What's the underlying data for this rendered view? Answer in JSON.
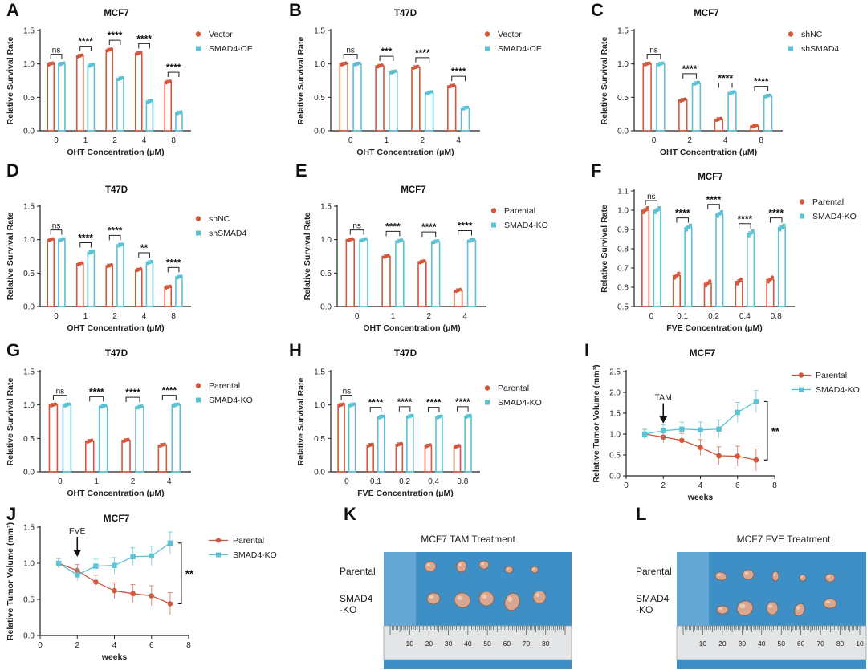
{
  "figure": {
    "colors": {
      "red": "#d2573d",
      "blue": "#5bc2d4",
      "axis": "#222222",
      "photo_bg": "#3e8fc6"
    },
    "photos": [
      {
        "panel": "K",
        "title": "MCF7 TAM Treatment",
        "row1": "Parental",
        "row2a": "SMAD4",
        "row2b": "-KO",
        "ruler": [
          "10",
          "20",
          "30",
          "40",
          "50",
          "60",
          "70",
          "80"
        ]
      },
      {
        "panel": "L",
        "title": "MCF7 FVE Treatment",
        "row1": "Parental",
        "row2a": "SMAD4",
        "row2b": "-KO",
        "ruler": [
          "10",
          "20",
          "30",
          "40",
          "50",
          "60",
          "70",
          "80",
          "10"
        ]
      }
    ]
  },
  "chart_data": [
    {
      "id": "A",
      "type": "bar",
      "panel": "A",
      "title": "MCF7",
      "xlabel": "OHT Concentration (μM)",
      "ylabel": "Relative Survival Rate",
      "categories": [
        "0",
        "1",
        "2",
        "4",
        "8"
      ],
      "yticks": [
        "0.0",
        "0.5",
        "1.0",
        "1.5"
      ],
      "ylim": [
        0,
        1.5
      ],
      "series": [
        {
          "name": "Vector",
          "values": [
            1.0,
            1.12,
            1.21,
            1.16,
            0.73
          ]
        },
        {
          "name": "SMAD4-OE",
          "values": [
            1.0,
            0.98,
            0.78,
            0.44,
            0.27
          ]
        }
      ],
      "sig": [
        "ns",
        "****",
        "****",
        "****",
        "****"
      ]
    },
    {
      "id": "B",
      "type": "bar",
      "panel": "B",
      "title": "T47D",
      "xlabel": "OHT Concentration (μM)",
      "ylabel": "Relative Survival Rate",
      "categories": [
        "0",
        "1",
        "2",
        "4"
      ],
      "yticks": [
        "0.0",
        "0.5",
        "1.0",
        "1.5"
      ],
      "ylim": [
        0,
        1.5
      ],
      "series": [
        {
          "name": "Vector",
          "values": [
            1.0,
            0.97,
            0.95,
            0.67
          ]
        },
        {
          "name": "SMAD4-OE",
          "values": [
            1.0,
            0.88,
            0.57,
            0.34
          ]
        }
      ],
      "sig": [
        "ns",
        "***",
        "****",
        "****"
      ]
    },
    {
      "id": "C",
      "type": "bar",
      "panel": "C",
      "title": "MCF7",
      "xlabel": "OHT Concentration (μM)",
      "ylabel": "Relative Survival Rate",
      "categories": [
        "0",
        "2",
        "4",
        "8"
      ],
      "yticks": [
        "0.0",
        "0.5",
        "1.0",
        "1.5"
      ],
      "ylim": [
        0,
        1.5
      ],
      "series": [
        {
          "name": "shNC",
          "values": [
            1.0,
            0.46,
            0.17,
            0.07
          ]
        },
        {
          "name": "shSMAD4",
          "values": [
            1.0,
            0.71,
            0.57,
            0.52
          ]
        }
      ],
      "sig": [
        "ns",
        "****",
        "****",
        "****"
      ]
    },
    {
      "id": "D",
      "type": "bar",
      "panel": "D",
      "title": "T47D",
      "xlabel": "OHT Concentration (μM)",
      "ylabel": "Relative Survival Rate",
      "categories": [
        "0",
        "1",
        "2",
        "4",
        "8"
      ],
      "yticks": [
        "0.0",
        "0.5",
        "1.0",
        "1.5"
      ],
      "ylim": [
        0,
        1.5
      ],
      "series": [
        {
          "name": "shNC",
          "values": [
            1.0,
            0.64,
            0.61,
            0.55,
            0.29
          ]
        },
        {
          "name": "shSMAD4",
          "values": [
            1.0,
            0.81,
            0.92,
            0.66,
            0.44
          ]
        }
      ],
      "sig": [
        "ns",
        "****",
        "****",
        "**",
        "****"
      ]
    },
    {
      "id": "E",
      "type": "bar",
      "panel": "E",
      "title": "MCF7",
      "xlabel": "OHT Concentration (μM)",
      "ylabel": "Relative Survival Rate",
      "categories": [
        "0",
        "1",
        "2",
        "4"
      ],
      "yticks": [
        "0.0",
        "0.5",
        "1.0",
        "1.5"
      ],
      "ylim": [
        0,
        1.5
      ],
      "series": [
        {
          "name": "Parental",
          "values": [
            1.0,
            0.75,
            0.67,
            0.24
          ]
        },
        {
          "name": "SMAD4-KO",
          "values": [
            1.0,
            0.98,
            0.97,
            0.99
          ]
        }
      ],
      "sig": [
        "ns",
        "****",
        "****",
        "****"
      ]
    },
    {
      "id": "F",
      "type": "bar",
      "panel": "F",
      "title": "MCF7",
      "xlabel": "FVE Concentration (μM)",
      "ylabel": "Relative Survival Rate",
      "categories": [
        "0",
        "0.1",
        "0.2",
        "0.4",
        "0.8"
      ],
      "yticks": [
        "0.5",
        "0.6",
        "0.7",
        "0.8",
        "0.9",
        "1.0",
        "1.1"
      ],
      "ylim": [
        0.5,
        1.1
      ],
      "series": [
        {
          "name": "Parental",
          "values": [
            1.0,
            0.66,
            0.62,
            0.63,
            0.64
          ]
        },
        {
          "name": "SMAD4-KO",
          "values": [
            1.0,
            0.91,
            0.98,
            0.88,
            0.91
          ]
        }
      ],
      "sig": [
        "ns",
        "****",
        "****",
        "****",
        "****"
      ]
    },
    {
      "id": "G",
      "type": "bar",
      "panel": "G",
      "title": "T47D",
      "xlabel": "OHT Concentration (μM)",
      "ylabel": "Relative Survival Rate",
      "categories": [
        "0",
        "1",
        "2",
        "4"
      ],
      "yticks": [
        "0.0",
        "0.5",
        "1.0",
        "1.5"
      ],
      "ylim": [
        0,
        1.5
      ],
      "series": [
        {
          "name": "Parental",
          "values": [
            1.0,
            0.46,
            0.47,
            0.4
          ]
        },
        {
          "name": "SMAD4-KO",
          "values": [
            1.0,
            0.98,
            0.97,
            1.0
          ]
        }
      ],
      "sig": [
        "ns",
        "****",
        "****",
        "****"
      ]
    },
    {
      "id": "H",
      "type": "bar",
      "panel": "H",
      "title": "T47D",
      "xlabel": "FVE Concentration (μM)",
      "ylabel": "Relative Survival Rate",
      "categories": [
        "0",
        "0.1",
        "0.2",
        "0.4",
        "0.8"
      ],
      "yticks": [
        "0.0",
        "0.5",
        "1.0",
        "1.5"
      ],
      "ylim": [
        0,
        1.5
      ],
      "series": [
        {
          "name": "Parental",
          "values": [
            1.0,
            0.4,
            0.41,
            0.39,
            0.38
          ]
        },
        {
          "name": "SMAD4-KO",
          "values": [
            1.0,
            0.82,
            0.83,
            0.82,
            0.83
          ]
        }
      ],
      "sig": [
        "ns",
        "****",
        "****",
        "****",
        "****"
      ]
    },
    {
      "id": "I",
      "type": "line",
      "panel": "I",
      "title": "MCF7",
      "xlabel": "weeks",
      "ylabel": "Relative Tumor Volume (mm³)",
      "xticks": [
        "0",
        "2",
        "4",
        "6",
        "8"
      ],
      "xlim": [
        0,
        8
      ],
      "yticks": [
        "0.0",
        "0.5",
        "1.0",
        "1.5",
        "2.0",
        "2.5"
      ],
      "ylim": [
        0,
        2.5
      ],
      "annotation": "TAM",
      "annotation_x": 2,
      "sig": "**",
      "series": [
        {
          "name": "Parental",
          "x": [
            1,
            2,
            3,
            4,
            5,
            6,
            7
          ],
          "values": [
            1.0,
            0.93,
            0.85,
            0.68,
            0.48,
            0.47,
            0.38
          ]
        },
        {
          "name": "SMAD4-KO",
          "x": [
            1,
            2,
            3,
            4,
            5,
            6,
            7
          ],
          "values": [
            1.0,
            1.08,
            1.12,
            1.1,
            1.12,
            1.52,
            1.78
          ]
        }
      ]
    },
    {
      "id": "J",
      "type": "line",
      "panel": "J",
      "title": "MCF7",
      "xlabel": "weeks",
      "ylabel": "Relative Tumor Volume (mm³)",
      "xticks": [
        "0",
        "2",
        "4",
        "6",
        "8"
      ],
      "xlim": [
        0,
        8
      ],
      "yticks": [
        "0.0",
        "0.5",
        "1.0",
        "1.5"
      ],
      "ylim": [
        0,
        1.5
      ],
      "annotation": "FVE",
      "annotation_x": 2,
      "sig": "**",
      "series": [
        {
          "name": "Parental",
          "x": [
            1,
            2,
            3,
            4,
            5,
            6,
            7
          ],
          "values": [
            1.0,
            0.9,
            0.74,
            0.62,
            0.58,
            0.55,
            0.44
          ]
        },
        {
          "name": "SMAD4-KO",
          "x": [
            1,
            2,
            3,
            4,
            5,
            6,
            7
          ],
          "values": [
            1.0,
            0.84,
            0.96,
            0.97,
            1.09,
            1.1,
            1.28
          ]
        }
      ]
    }
  ]
}
